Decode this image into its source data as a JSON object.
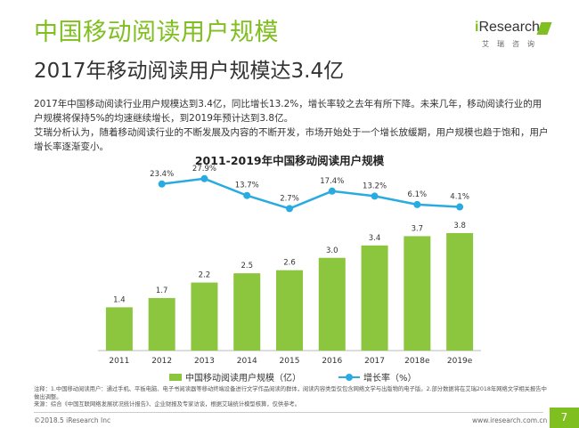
{
  "header": {
    "title": "中国移动阅读用户规模",
    "subtitle": "2017年移动阅读用户规模达3.4亿"
  },
  "logo": {
    "name_i": "i",
    "name_rest": "Research",
    "sub": "艾瑞咨询"
  },
  "paragraph": {
    "line1": "2017年中国移动阅读行业用户规模达到3.4亿，同比增长13.2%，增长率较之去年有所下降。未来几年，移动阅读行业的用户规模将保持5%的均速继续增长，到2019年预计达到3.8亿。",
    "line2": "艾瑞分析认为，随着移动阅读行业的不断发展及内容的不断开发，市场开始处于一个增长放缓期，用户规模也趋于饱和，用户增长率逐渐变小。"
  },
  "chart_data": {
    "type": "bar",
    "title": "2011-2019年中国移动阅读用户规模",
    "categories": [
      "2011",
      "2012",
      "2013",
      "2014",
      "2015",
      "2016",
      "2017",
      "2018e",
      "2019e"
    ],
    "series": [
      {
        "name": "中国移动阅读用户规模（亿）",
        "type": "bar",
        "values": [
          1.4,
          1.7,
          2.2,
          2.5,
          2.6,
          3.0,
          3.4,
          3.7,
          3.8
        ],
        "labels": [
          "1.4",
          "1.7",
          "2.2",
          "2.5",
          "2.6",
          "3.0",
          "3.4",
          "3.7",
          "3.8"
        ],
        "color": "#8cc63f"
      },
      {
        "name": "增长率（%）",
        "type": "line",
        "values": [
          null,
          23.4,
          27.9,
          13.7,
          2.7,
          17.4,
          13.2,
          6.1,
          4.1
        ],
        "labels": [
          "",
          "23.4%",
          "27.9%",
          "13.7%",
          "2.7%",
          "17.4%",
          "13.2%",
          "6.1%",
          "4.1%"
        ],
        "color": "#29abe2"
      }
    ],
    "grid": false,
    "legend": "bottom"
  },
  "note": {
    "line1": "注释：1.中国移动阅读用户：通过手机、平板电脑、电子书阅读器等移动终端设备进行文学作品阅读的群体，阅读内容类型仅包含网络文学与出版物的电子版。2.部分数据将在艾瑞2018年网络文学相关报告中做出调整。",
    "line2": "来源：综合《中国互联网络发展状况统计报告》、企业财报及专家访谈，根据艾瑞统计模型核算，仅供参考。"
  },
  "footer": {
    "copyright": "©2018.5 iResearch Inc",
    "url": "www.iresearch.com.cn",
    "page": "7"
  }
}
